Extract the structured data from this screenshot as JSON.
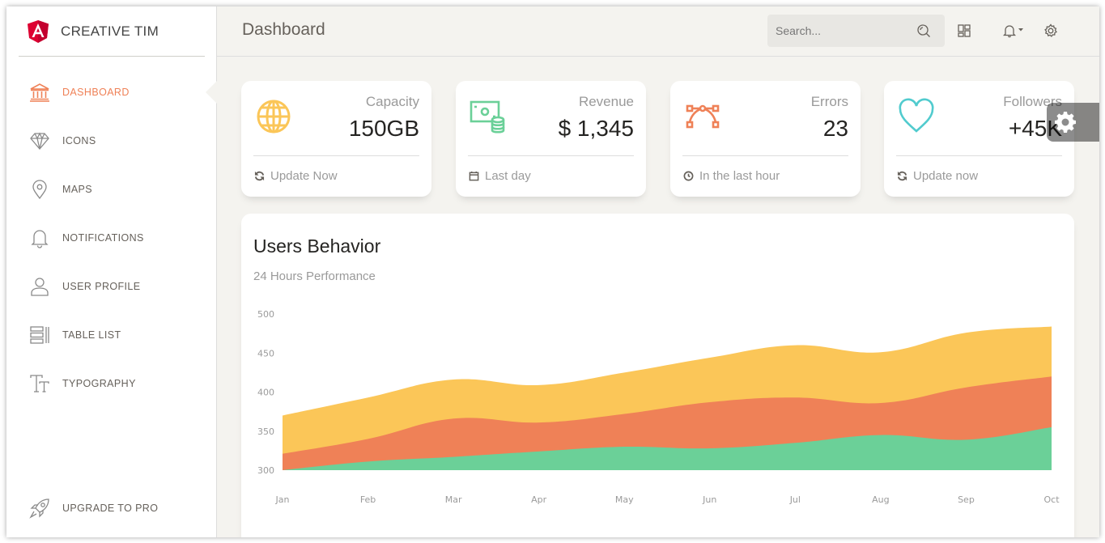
{
  "brand": {
    "name": "CREATIVE TIM"
  },
  "sidebar": {
    "items": [
      {
        "label": "DASHBOARD",
        "icon": "bank-icon",
        "active": true
      },
      {
        "label": "ICONS",
        "icon": "diamond-icon"
      },
      {
        "label": "MAPS",
        "icon": "map-pin-icon"
      },
      {
        "label": "NOTIFICATIONS",
        "icon": "bell-icon"
      },
      {
        "label": "USER PROFILE",
        "icon": "user-icon"
      },
      {
        "label": "TABLE LIST",
        "icon": "table-list-icon"
      },
      {
        "label": "TYPOGRAPHY",
        "icon": "typography-icon"
      }
    ],
    "upgrade": {
      "label": "UPGRADE TO PRO",
      "icon": "rocket-icon"
    }
  },
  "header": {
    "title": "Dashboard",
    "search_placeholder": "Search...",
    "icons": [
      "search-icon",
      "layout-grid-icon",
      "bell-icon",
      "gear-icon"
    ]
  },
  "stats": [
    {
      "label": "Capacity",
      "value": "150GB",
      "footer": "Update Now",
      "icon": "globe-icon",
      "footer_icon": "refresh-icon",
      "color": "#fbc658"
    },
    {
      "label": "Revenue",
      "value": "$ 1,345",
      "footer": "Last day",
      "icon": "money-coins-icon",
      "footer_icon": "calendar-icon",
      "color": "#6bd098"
    },
    {
      "label": "Errors",
      "value": "23",
      "footer": "In the last hour",
      "icon": "vector-icon",
      "footer_icon": "clock-icon",
      "color": "#ef8157"
    },
    {
      "label": "Followers",
      "value": "+45K",
      "footer": "Update now",
      "icon": "heart-icon",
      "footer_icon": "refresh-icon",
      "color": "#51cbce"
    }
  ],
  "chart": {
    "title": "Users Behavior",
    "subtitle": "24 Hours Performance"
  },
  "chart_data": {
    "type": "area",
    "categories": [
      "Jan",
      "Feb",
      "Mar",
      "Apr",
      "May",
      "Jun",
      "Jul",
      "Aug",
      "Sep",
      "Oct"
    ],
    "ylim": [
      300,
      500
    ],
    "yticks": [
      300,
      350,
      400,
      450,
      500
    ],
    "grid": false,
    "series": [
      {
        "color": "#fbc658",
        "values": [
          370,
          393,
          416,
          409,
          425,
          444,
          460,
          451,
          476,
          484
        ]
      },
      {
        "color": "#ef8157",
        "values": [
          321,
          340,
          366,
          361,
          372,
          387,
          393,
          386,
          406,
          420
        ]
      },
      {
        "color": "#6bd098",
        "values": [
          300,
          311,
          317,
          324,
          330,
          328,
          335,
          345,
          339,
          355
        ]
      }
    ]
  },
  "colors": {
    "accent": "#ef8157",
    "background": "#f4f3ef",
    "text": "#66615b",
    "muted": "#9a9a9a"
  }
}
